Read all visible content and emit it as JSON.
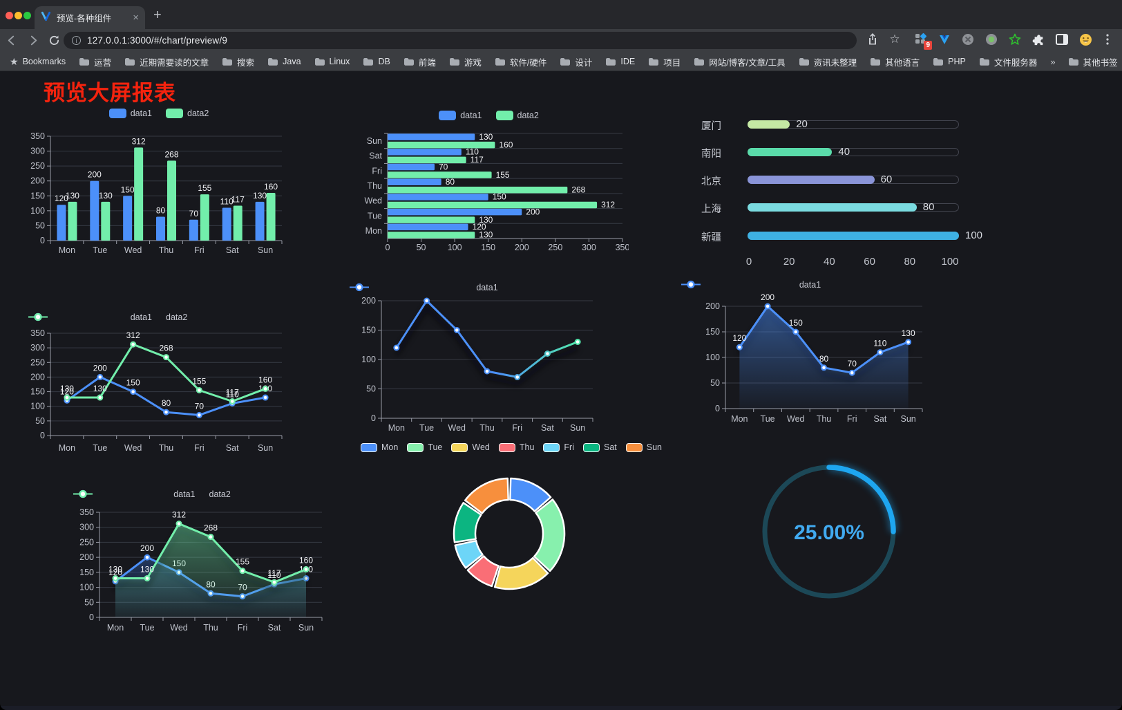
{
  "browser": {
    "window_controls": [
      "close",
      "minimize",
      "zoom"
    ],
    "tab": {
      "title": "预览-各种组件",
      "close_glyph": "×",
      "new_tab_glyph": "+"
    },
    "address": {
      "url": "127.0.0.1:3000/#/chart/preview/9"
    },
    "extensions": [
      {
        "name": "apps-grid",
        "badge": "9"
      },
      {
        "name": "vue-devtools"
      },
      {
        "name": "dark-circle"
      },
      {
        "name": "recorder-circle"
      },
      {
        "name": "green-star"
      },
      {
        "name": "puzzle"
      },
      {
        "name": "sidebar"
      },
      {
        "name": "emoji-face"
      }
    ],
    "bookmarks_bar": {
      "root_label": "Bookmarks",
      "folders": [
        "运营",
        "近期需要读的文章",
        "搜索",
        "Java",
        "Linux",
        "DB",
        "前端",
        "游戏",
        "软件/硬件",
        "设计",
        "IDE",
        "项目",
        "网站/博客/文章/工具",
        "资讯未整理",
        "其他语言",
        "PHP",
        "文件服务器"
      ],
      "overflow_glyph": "»",
      "other_label": "其他书签"
    }
  },
  "page": {
    "title": "预览大屏报表"
  },
  "colors": {
    "background": "#17181d",
    "title_red": "#f5230e",
    "data1": "#4c90f9",
    "data2": "#72eeab"
  },
  "chart_data": [
    {
      "id": "c1",
      "type": "bar",
      "title": "",
      "categories": [
        "Mon",
        "Tue",
        "Wed",
        "Thu",
        "Fri",
        "Sat",
        "Sun"
      ],
      "series": [
        {
          "name": "data1",
          "color": "#4c90f9",
          "values": [
            120,
            200,
            150,
            80,
            70,
            110,
            130
          ]
        },
        {
          "name": "data2",
          "color": "#72eeab",
          "values": [
            130,
            130,
            312,
            268,
            155,
            117,
            160
          ]
        }
      ],
      "ylim": [
        0,
        350
      ],
      "ystep": 50,
      "legend": [
        "data1",
        "data2"
      ],
      "grid": true,
      "legend_position": "top"
    },
    {
      "id": "c2",
      "type": "bar",
      "orientation": "horizontal",
      "categories": [
        "Mon",
        "Tue",
        "Wed",
        "Thu",
        "Fri",
        "Sat",
        "Sun"
      ],
      "category_order_top_to_bottom": [
        "Sun",
        "Sat",
        "Fri",
        "Thu",
        "Wed",
        "Tue",
        "Mon"
      ],
      "series": [
        {
          "name": "data1",
          "color": "#4c90f9",
          "values": [
            120,
            200,
            150,
            80,
            70,
            110,
            130
          ]
        },
        {
          "name": "data2",
          "color": "#72eeab",
          "values": [
            130,
            130,
            312,
            268,
            155,
            117,
            160
          ]
        }
      ],
      "xlim": [
        0,
        350
      ],
      "xticks": [
        0,
        50,
        100,
        150,
        200,
        250,
        300,
        350
      ],
      "legend": [
        "data1",
        "data2"
      ]
    },
    {
      "id": "c3",
      "type": "bar",
      "orientation": "horizontal",
      "style": "progress",
      "categories": [
        "厦门",
        "南阳",
        "北京",
        "上海",
        "新疆"
      ],
      "values": [
        20,
        40,
        60,
        80,
        100
      ],
      "colors": [
        "#c5e9a4",
        "#5adbaa",
        "#8a94d8",
        "#7adbe0",
        "#3eb1e3"
      ],
      "xlim": [
        0,
        100
      ],
      "xticks": [
        0,
        20,
        40,
        60,
        80,
        100
      ]
    },
    {
      "id": "c4",
      "type": "line",
      "categories": [
        "Mon",
        "Tue",
        "Wed",
        "Thu",
        "Fri",
        "Sat",
        "Sun"
      ],
      "series": [
        {
          "name": "data1",
          "color": "#4c90f9",
          "values": [
            120,
            200,
            150,
            80,
            70,
            110,
            130
          ]
        },
        {
          "name": "data2",
          "color": "#72eeab",
          "values": [
            130,
            130,
            312,
            268,
            155,
            117,
            160
          ]
        }
      ],
      "ylim": [
        0,
        350
      ],
      "ystep": 50,
      "point_labels": true,
      "legend": [
        "data1",
        "data2"
      ]
    },
    {
      "id": "c5",
      "type": "line",
      "categories": [
        "Mon",
        "Tue",
        "Wed",
        "Thu",
        "Fri",
        "Sat",
        "Sun"
      ],
      "series": [
        {
          "name": "data1",
          "gradient": [
            "#4c90f9",
            "#53e8ab"
          ],
          "values": [
            120,
            200,
            150,
            80,
            70,
            110,
            130
          ]
        }
      ],
      "ylim": [
        0,
        200
      ],
      "ystep": 50,
      "point_labels": false,
      "shadow": true,
      "legend": [
        "data1"
      ]
    },
    {
      "id": "c6",
      "type": "area",
      "categories": [
        "Mon",
        "Tue",
        "Wed",
        "Thu",
        "Fri",
        "Sat",
        "Sun"
      ],
      "series": [
        {
          "name": "data1",
          "color": "#4c90f9",
          "area": true,
          "values": [
            120,
            200,
            150,
            80,
            70,
            110,
            130
          ]
        }
      ],
      "ylim": [
        0,
        200
      ],
      "ystep": 50,
      "point_labels": true,
      "shadow": true,
      "legend": [
        "data1"
      ]
    },
    {
      "id": "c7",
      "type": "area",
      "categories": [
        "Mon",
        "Tue",
        "Wed",
        "Thu",
        "Fri",
        "Sat",
        "Sun"
      ],
      "series": [
        {
          "name": "data1",
          "color": "#4c90f9",
          "area": true,
          "values": [
            120,
            200,
            150,
            80,
            70,
            110,
            130
          ]
        },
        {
          "name": "data2",
          "color": "#72eeab",
          "area": true,
          "values": [
            130,
            130,
            312,
            268,
            155,
            117,
            160
          ]
        }
      ],
      "ylim": [
        0,
        350
      ],
      "ystep": 50,
      "point_labels": true,
      "shadow": true,
      "legend": [
        "data1",
        "data2"
      ]
    },
    {
      "id": "c8",
      "type": "pie",
      "subtype": "donut",
      "inner_radius_ratio": 0.61,
      "categories": [
        "Mon",
        "Tue",
        "Wed",
        "Thu",
        "Fri",
        "Sat",
        "Sun"
      ],
      "values": [
        120,
        200,
        150,
        80,
        70,
        110,
        130
      ],
      "colors": [
        "#4c90f9",
        "#87f0ad",
        "#f5d55b",
        "#fa6e76",
        "#6dd5f7",
        "#0cb581",
        "#f78f3d"
      ],
      "legend_position": "top"
    },
    {
      "id": "c9",
      "type": "gauge",
      "value": 25,
      "max": 100,
      "label": "25.00%",
      "color": "#1ea6f0",
      "track_color": "#1c4857",
      "text_color": "#41aaf0"
    }
  ]
}
